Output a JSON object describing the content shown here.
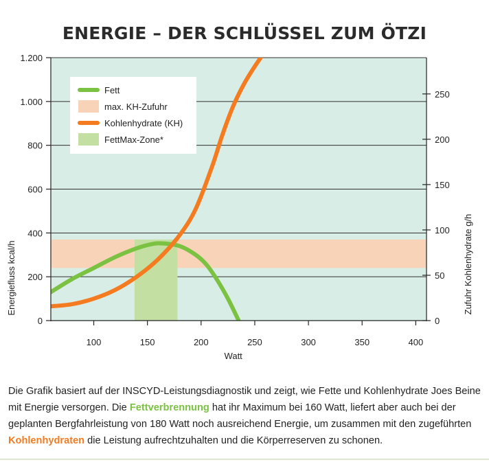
{
  "title": "ENERGIE – DER SCHLÜSSEL ZUM ÖTZI",
  "chart_data": {
    "type": "line",
    "x_label": "Watt",
    "y_label": "Energiefluss kcal/h",
    "y2_label": "Zufuhr Kohlenhydrate g/h",
    "x_range": [
      60,
      410
    ],
    "y_range": [
      0,
      1200
    ],
    "y2_range": [
      0,
      290
    ],
    "x_ticks": [
      100,
      150,
      200,
      250,
      300,
      350,
      400
    ],
    "y_ticks": [
      0,
      200,
      400,
      600,
      800,
      1000,
      1200
    ],
    "y_tick_labels": [
      "0",
      "200",
      "400",
      "600",
      "800",
      "1.000",
      "1.200"
    ],
    "y2_ticks": [
      0,
      50,
      100,
      150,
      200,
      250
    ],
    "series": [
      {
        "name": "Fett",
        "color": "#7cc242",
        "x": [
          60,
          80,
          100,
          120,
          140,
          155,
          165,
          180,
          195,
          205,
          215,
          225,
          235
        ],
        "y": [
          130,
          190,
          240,
          290,
          330,
          350,
          352,
          340,
          300,
          255,
          185,
          100,
          0
        ]
      },
      {
        "name": "Kohlenhydrate (KH)",
        "color": "#f47b20",
        "x": [
          60,
          80,
          100,
          120,
          140,
          160,
          180,
          195,
          210,
          220,
          230,
          240,
          250,
          262
        ],
        "y": [
          65,
          75,
          100,
          140,
          200,
          280,
          390,
          510,
          700,
          850,
          980,
          1080,
          1160,
          1245
        ]
      }
    ],
    "bands": [
      {
        "name": "max. KH-Zufuhr",
        "color": "#f9d3b7",
        "y_from": 240,
        "y_to": 370
      },
      {
        "name": "FettMax-Zone*",
        "color": "#c3e0a2",
        "x_from": 138,
        "x_to": 178,
        "y_from": 0,
        "y_to": 370
      }
    ],
    "legend": {
      "position": "top-left",
      "entries": [
        {
          "label": "Fett",
          "kind": "line",
          "color": "#7cc242"
        },
        {
          "label": "max. KH-Zufuhr",
          "kind": "patch",
          "color": "#f9d3b7"
        },
        {
          "label": "Kohlenhydrate (KH)",
          "kind": "line",
          "color": "#f47b20"
        },
        {
          "label": "FettMax-Zone*",
          "kind": "patch",
          "color": "#c3e0a2"
        }
      ]
    },
    "plot_background": "#d9ede7"
  },
  "caption": {
    "part1": "Die Grafik basiert auf der INSCYD-Leistungsdiagnostik und zeigt, wie Fette und Kohlenhydrate Joes Beine mit Energie versorgen. Die ",
    "fett_word": "Fettverbrennung",
    "part2": " hat ihr Maximum bei 160 Watt, liefert aber auch bei der geplanten Bergfahrleistung von 180 Watt noch ausreichend Energie, um zusammen mit den zugeführten ",
    "kh_word": "Kohlenhydraten",
    "part3": " die Leistung aufrechtzuhalten und die Körperreserven zu schonen."
  }
}
